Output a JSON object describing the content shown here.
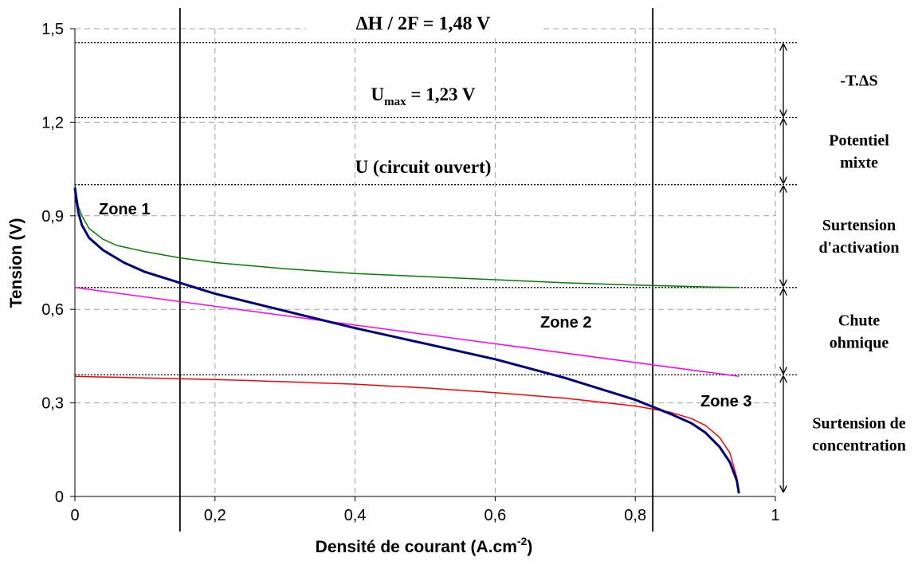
{
  "chart_data": {
    "type": "line",
    "xlabel": "Densité de courant (A.cm",
    "xlabel_sup": "-2",
    "xlabel_close": ")",
    "ylabel": "Tension (V)",
    "xlim": [
      0,
      1
    ],
    "ylim": [
      0,
      1.5
    ],
    "x_ticks": [
      0,
      0.2,
      0.4,
      0.6,
      0.8,
      1
    ],
    "x_tick_labels": [
      "0",
      "0,2",
      "0,4",
      "0,6",
      "0,8",
      "1"
    ],
    "y_ticks": [
      0,
      0.3,
      0.6,
      0.9,
      1.2,
      1.5
    ],
    "y_tick_labels": [
      "0",
      "0,3",
      "0,6",
      "0,9",
      "1,2",
      "1,5"
    ],
    "grid": true,
    "series": [
      {
        "color": "#008000",
        "x": [
          0,
          0.005,
          0.01,
          0.02,
          0.04,
          0.06,
          0.1,
          0.15,
          0.2,
          0.3,
          0.4,
          0.5,
          0.6,
          0.7,
          0.8,
          0.9,
          0.948
        ],
        "y": [
          1.0,
          0.93,
          0.9,
          0.86,
          0.825,
          0.805,
          0.785,
          0.765,
          0.75,
          0.73,
          0.715,
          0.705,
          0.695,
          0.685,
          0.678,
          0.672,
          0.67
        ]
      },
      {
        "color": "#ff00ff",
        "x": [
          0,
          0.948
        ],
        "y": [
          0.67,
          0.385
        ]
      },
      {
        "color": "#ff0000",
        "x": [
          0,
          0.1,
          0.2,
          0.3,
          0.4,
          0.5,
          0.6,
          0.7,
          0.8,
          0.85,
          0.88,
          0.9,
          0.92,
          0.935,
          0.945,
          0.948
        ],
        "y": [
          0.385,
          0.38,
          0.375,
          0.368,
          0.36,
          0.348,
          0.333,
          0.315,
          0.29,
          0.27,
          0.25,
          0.228,
          0.19,
          0.14,
          0.06,
          0.01
        ]
      },
      {
        "color": "#000080",
        "x": [
          0,
          0.002,
          0.005,
          0.01,
          0.02,
          0.04,
          0.07,
          0.1,
          0.15,
          0.2,
          0.3,
          0.4,
          0.5,
          0.6,
          0.7,
          0.8,
          0.85,
          0.88,
          0.9,
          0.92,
          0.935,
          0.945,
          0.948
        ],
        "y": [
          0.99,
          0.95,
          0.91,
          0.87,
          0.83,
          0.79,
          0.75,
          0.72,
          0.685,
          0.65,
          0.595,
          0.54,
          0.49,
          0.44,
          0.38,
          0.31,
          0.265,
          0.235,
          0.205,
          0.16,
          0.11,
          0.05,
          0.01
        ]
      }
    ],
    "reference_lines": [
      {
        "y": 1.455
      },
      {
        "y": 1.215
      },
      {
        "y": 1.0
      },
      {
        "y": 0.67
      },
      {
        "y": 0.39
      }
    ],
    "zone_lines": [
      {
        "x": 0.15
      },
      {
        "x": 0.825
      }
    ],
    "annotations": {
      "dh": "ΔH / 2F = 1,48 V",
      "umax_main": "U",
      "umax_sub": "max",
      "umax_value": " = 1,23 V",
      "u_open": "U (circuit ouvert)",
      "zone1": "Zone 1",
      "zone2": "Zone 2",
      "zone3": "Zone 3"
    },
    "losses": [
      {
        "lines": [
          "-T.ΔS"
        ],
        "from": 1.455,
        "to": 1.215
      },
      {
        "lines": [
          "Potentiel",
          "mixte"
        ],
        "from": 1.215,
        "to": 1.0
      },
      {
        "lines": [
          "Surtension",
          "d'activation"
        ],
        "from": 1.0,
        "to": 0.67
      },
      {
        "lines": [
          "Chute",
          "ohmique"
        ],
        "from": 0.67,
        "to": 0.39
      },
      {
        "lines": [
          "Surtension de",
          "concentration"
        ],
        "from": 0.39,
        "to": 0.01
      }
    ]
  }
}
